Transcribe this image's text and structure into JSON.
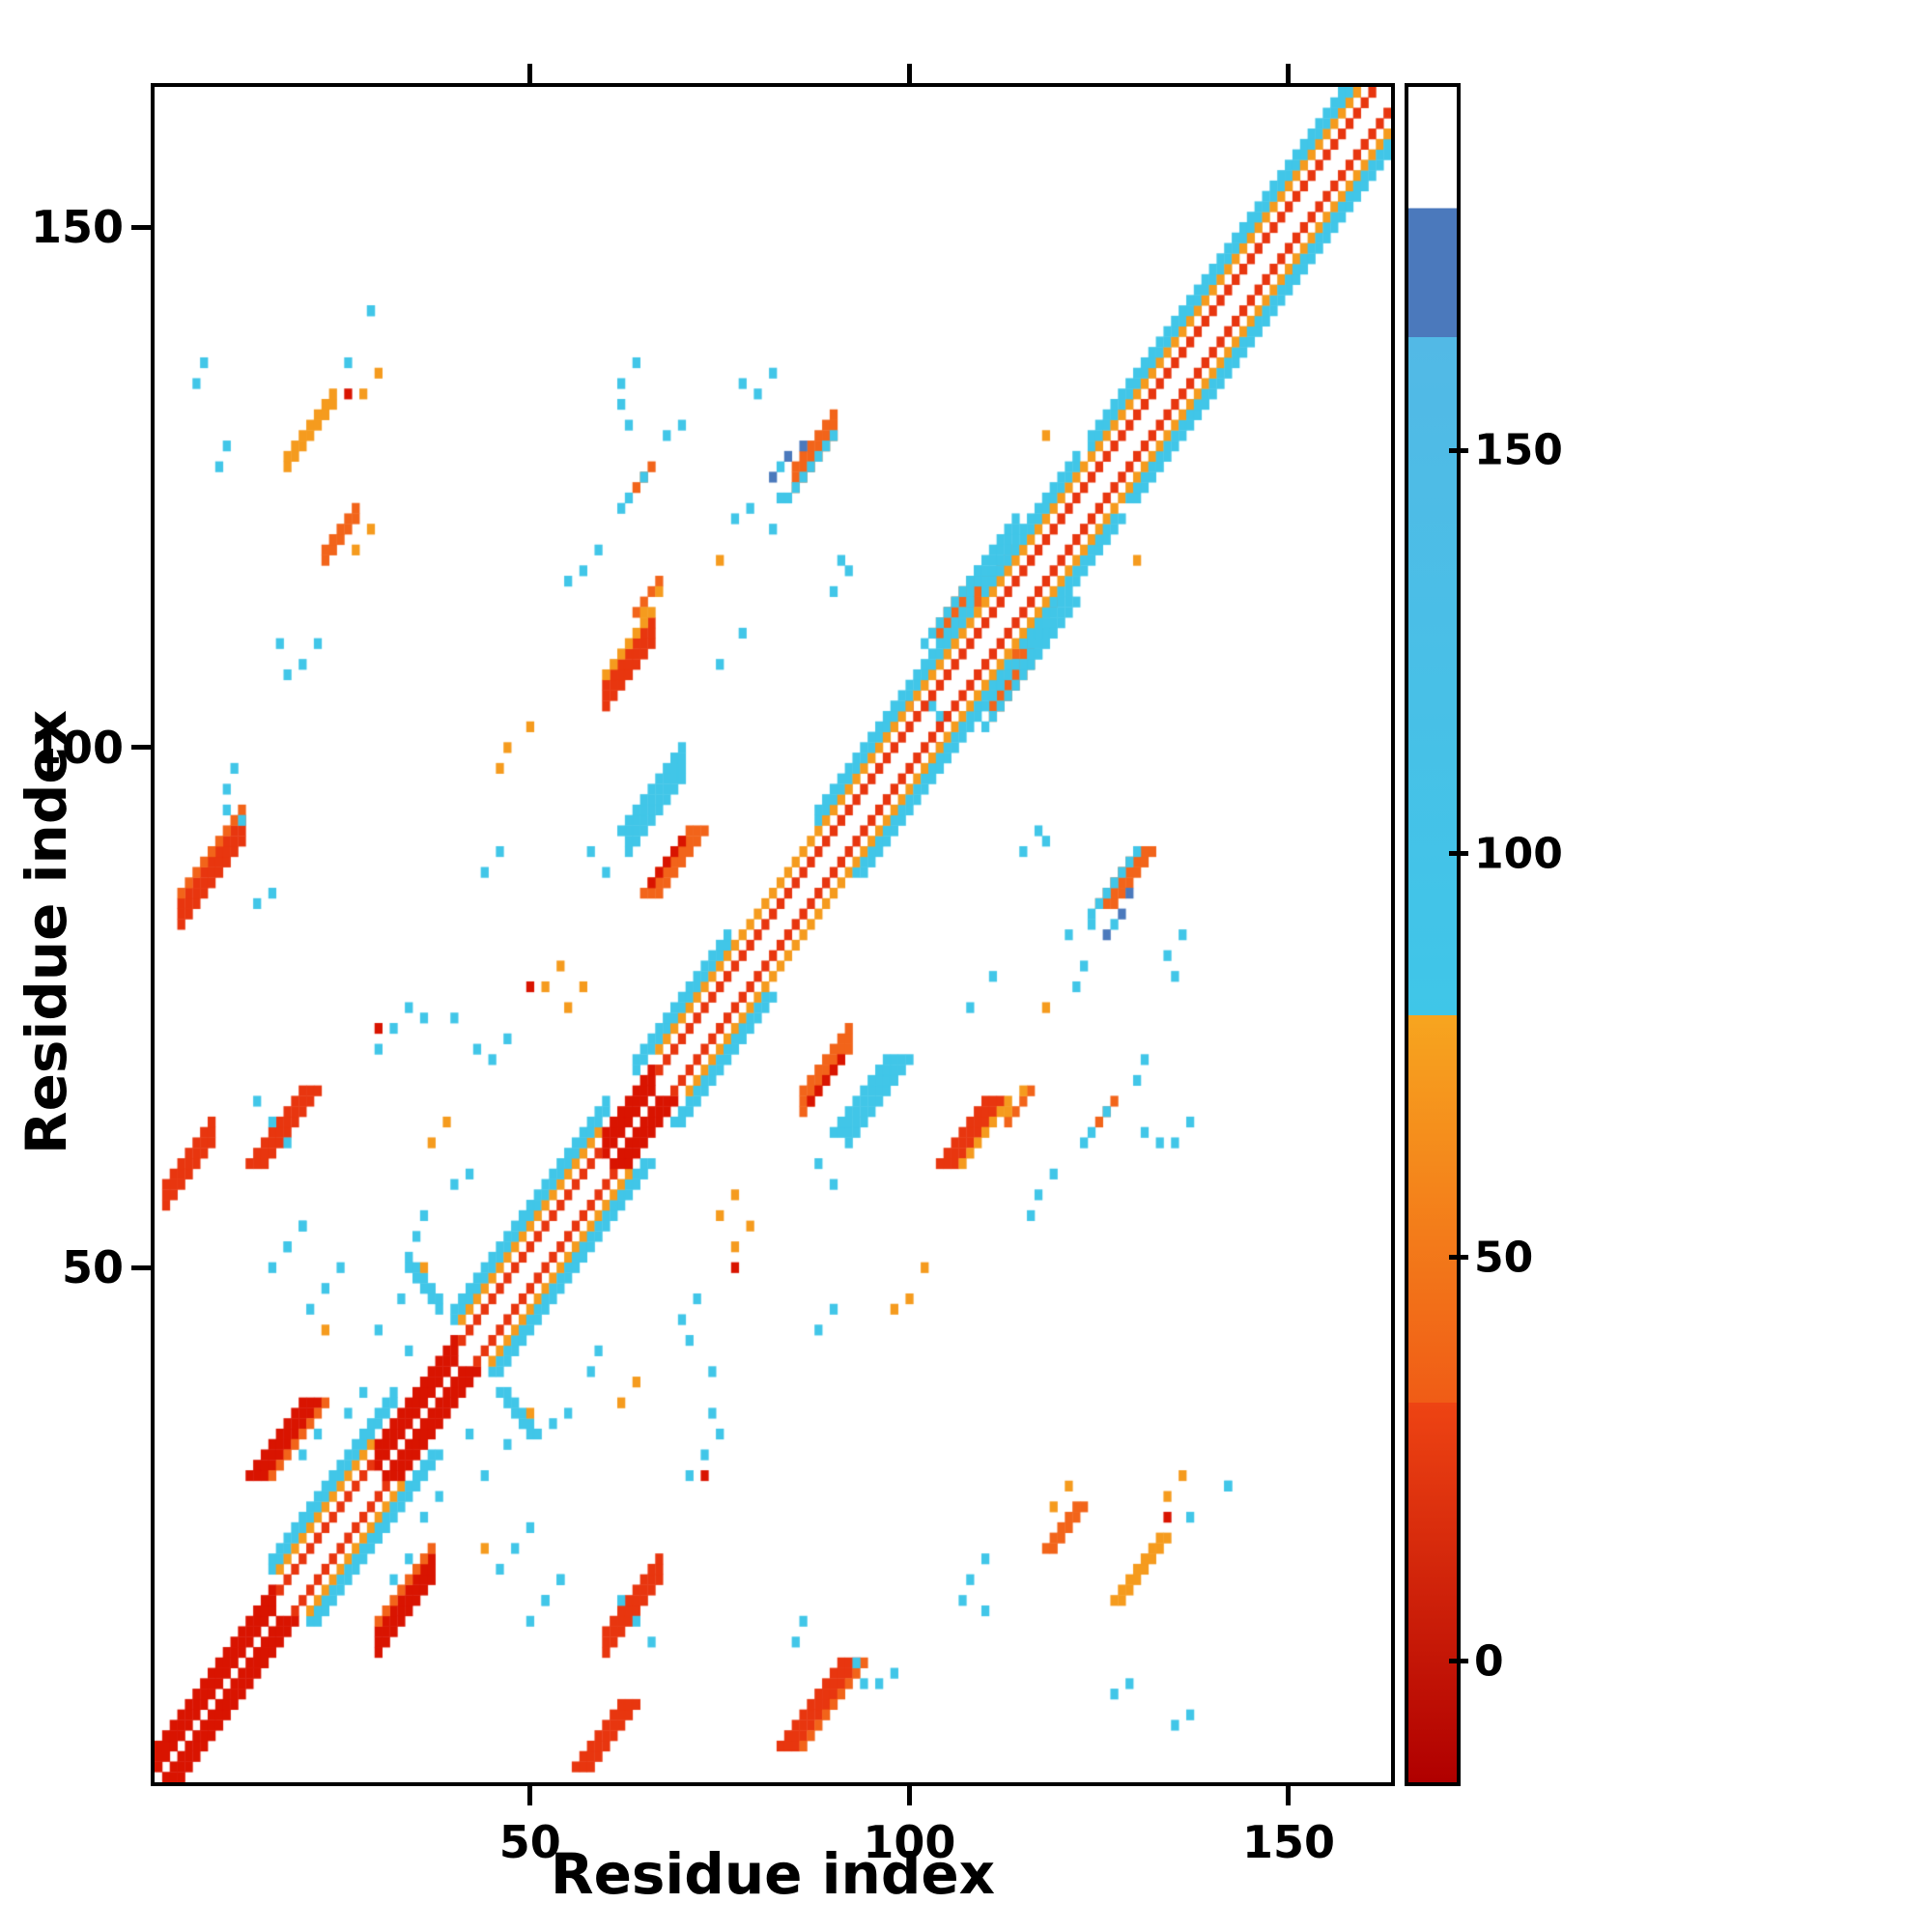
{
  "chart_data": {
    "type": "heatmap",
    "xlabel": "Residue index",
    "ylabel": "Residue index",
    "n_residues": 163,
    "x_ticks": [
      50,
      100,
      150
    ],
    "y_ticks": [
      50,
      100,
      150
    ],
    "grid": false,
    "colorbar": {
      "ticks": [
        0,
        50,
        100,
        150
      ],
      "value_range": [
        -15,
        195
      ],
      "segments": [
        {
          "from": -15,
          "to": 32,
          "color_bottom": "#b00000",
          "color_top": "#ee4413"
        },
        {
          "from": 32,
          "to": 80,
          "color_bottom": "#f05c16",
          "color_top": "#f7a51f"
        },
        {
          "from": 80,
          "to": 164,
          "color_bottom": "#3fc6e8",
          "color_top": "#52b9e6"
        },
        {
          "from": 164,
          "to": 180,
          "color_bottom": "#4b79bc",
          "color_top": "#4b79bc"
        },
        {
          "from": 180,
          "to": 195,
          "color_bottom": "#ffffff",
          "color_top": "#ffffff"
        }
      ]
    },
    "colormap": [
      {
        "max": 8,
        "color": "#c40d00"
      },
      {
        "max": 15,
        "color": "#d91400"
      },
      {
        "max": 32,
        "color": "#e8360f"
      },
      {
        "max": 55,
        "color": "#f2641a"
      },
      {
        "max": 80,
        "color": "#f59b1e"
      },
      {
        "max": 164,
        "color": "#41c6e8"
      },
      {
        "max": 180,
        "color": "#4b79bc"
      },
      {
        "max": 9999,
        "color": "#ffffff"
      }
    ],
    "diagonal": {
      "band": [
        {
          "offset": 2,
          "v": 28
        },
        {
          "offset": 4,
          "v": 58
        }
      ],
      "helix_flank": [
        {
          "offset": 5,
          "v": 100
        },
        {
          "offset": 6,
          "v": 100
        }
      ],
      "helix_ranges": [
        [
          16,
          32
        ],
        [
          40,
          60
        ],
        [
          64,
          76
        ],
        [
          88,
          108
        ],
        [
          110,
          122
        ],
        [
          124,
          163
        ]
      ],
      "solid_ranges": [
        [
          1,
          16
        ],
        [
          30,
          40
        ],
        [
          60,
          66
        ]
      ],
      "solid_offsets": [
        1,
        2,
        3
      ],
      "solid_v": 8
    },
    "clusters": [
      {
        "r": 83,
        "c": 4,
        "len": 9,
        "dir": 1,
        "w": 3,
        "v": 15
      },
      {
        "r": 86,
        "c": 4,
        "len": 9,
        "dir": 1,
        "w": 1,
        "v": 50
      },
      {
        "r": 56,
        "c": 2,
        "len": 7,
        "dir": 1,
        "w": 3,
        "v": 18
      },
      {
        "r": 13,
        "c": 30,
        "len": 8,
        "dir": 1,
        "w": 3,
        "v": 12
      },
      {
        "r": 16,
        "c": 30,
        "len": 8,
        "dir": 1,
        "w": 1,
        "v": 50
      },
      {
        "r": 13,
        "c": 60,
        "len": 8,
        "dir": 1,
        "w": 3,
        "v": 15
      },
      {
        "r": 103,
        "c": 111,
        "len": 6,
        "dir": 1,
        "w": 3,
        "v": 50
      },
      {
        "r": 102,
        "c": 110,
        "len": 8,
        "dir": 1,
        "w": 1,
        "v": 100
      },
      {
        "r": 104,
        "c": 60,
        "len": 7,
        "dir": 1,
        "w": 3,
        "v": 18
      },
      {
        "r": 107,
        "c": 60,
        "len": 7,
        "dir": 1,
        "w": 1,
        "v": 55
      },
      {
        "r": 65,
        "c": 86,
        "len": 7,
        "dir": 1,
        "w": 3,
        "v": 45
      },
      {
        "r": 66,
        "c": 87,
        "len": 5,
        "dir": 1,
        "w": 1,
        "v": 12
      },
      {
        "r": 90,
        "c": 63,
        "len": 8,
        "dir": 1,
        "w": 4,
        "v": 100
      },
      {
        "r": 127,
        "c": 18,
        "len": 7,
        "dir": 1,
        "w": 2,
        "v": 55
      },
      {
        "r": 125,
        "c": 85,
        "len": 6,
        "dir": 1,
        "w": 3,
        "v": 50
      },
      {
        "r": 124,
        "c": 84,
        "len": 7,
        "dir": 1,
        "w": 1,
        "v": 100
      },
      {
        "r": 115,
        "c": 108,
        "len": 7,
        "dir": 1,
        "w": 2,
        "v": 100
      },
      {
        "r": 114,
        "c": 109,
        "len": 6,
        "dir": 1,
        "w": 1,
        "v": 50
      },
      {
        "r": 113,
        "c": 64,
        "len": 4,
        "dir": 1,
        "w": 1,
        "v": 45
      },
      {
        "r": 125,
        "c": 64,
        "len": 3,
        "dir": 1,
        "w": 1,
        "v": 50
      },
      {
        "r": 46,
        "c": 38,
        "len": 5,
        "dir": -1,
        "w": 2,
        "v": 100
      },
      {
        "r": 118,
        "c": 23,
        "len": 5,
        "dir": 1,
        "w": 2,
        "v": 50
      }
    ],
    "dots": [
      [
        135,
        6,
        100
      ],
      [
        137,
        7,
        100
      ],
      [
        129,
        10,
        100
      ],
      [
        127,
        9,
        100
      ],
      [
        94,
        10,
        100
      ],
      [
        96,
        10,
        100
      ],
      [
        98,
        11,
        100
      ],
      [
        93,
        12,
        100
      ],
      [
        107,
        18,
        100
      ],
      [
        110,
        17,
        100
      ],
      [
        110,
        22,
        100
      ],
      [
        108,
        20,
        100
      ],
      [
        85,
        14,
        100
      ],
      [
        86,
        16,
        100
      ],
      [
        66,
        14,
        100
      ],
      [
        64,
        16,
        100
      ],
      [
        62,
        18,
        100
      ],
      [
        52,
        18,
        100
      ],
      [
        54,
        20,
        100
      ],
      [
        46,
        21,
        100
      ],
      [
        48,
        23,
        100
      ],
      [
        50,
        25,
        100
      ],
      [
        44,
        30,
        100
      ],
      [
        47,
        33,
        100
      ],
      [
        55,
        36,
        100
      ],
      [
        53,
        35,
        100
      ],
      [
        42,
        34,
        100
      ],
      [
        38,
        28,
        100
      ],
      [
        36,
        26,
        100
      ],
      [
        58,
        40,
        100
      ],
      [
        59,
        42,
        100
      ],
      [
        133,
        62,
        100
      ],
      [
        135,
        62,
        100
      ],
      [
        131,
        63,
        100
      ],
      [
        137,
        64,
        100
      ],
      [
        142,
        29,
        100
      ],
      [
        26,
        137,
        100
      ],
      [
        136,
        82,
        100
      ],
      [
        134,
        80,
        100
      ],
      [
        135,
        78,
        100
      ],
      [
        122,
        77,
        100
      ],
      [
        123,
        79,
        100
      ],
      [
        121,
        82,
        100
      ],
      [
        124,
        83,
        100
      ],
      [
        111,
        78,
        100
      ],
      [
        108,
        75,
        100
      ],
      [
        103,
        104,
        100
      ],
      [
        90,
        115,
        100
      ],
      [
        92,
        117,
        100
      ],
      [
        91,
        118,
        100
      ],
      [
        57,
        117,
        100
      ],
      [
        55,
        116,
        100
      ],
      [
        59,
        119,
        100
      ],
      [
        63,
        124,
        100
      ],
      [
        65,
        126,
        100
      ],
      [
        62,
        123,
        100
      ],
      [
        68,
        130,
        100
      ],
      [
        70,
        131,
        100
      ],
      [
        83,
        127,
        100
      ],
      [
        18,
        52,
        100
      ],
      [
        20,
        54,
        100
      ],
      [
        16,
        50,
        100
      ],
      [
        45,
        70,
        100
      ],
      [
        43,
        71,
        100
      ],
      [
        47,
        72,
        100
      ],
      [
        40,
        74,
        100
      ],
      [
        75,
        34,
        100
      ],
      [
        73,
        32,
        100
      ],
      [
        60,
        88,
        100
      ],
      [
        58,
        90,
        100
      ],
      [
        62,
        92,
        100
      ],
      [
        88,
        44,
        100
      ],
      [
        90,
        46,
        100
      ],
      [
        29,
        142,
        100
      ],
      [
        74,
        36,
        100
      ],
      [
        71,
        30,
        100
      ],
      [
        34,
        22,
        100
      ],
      [
        32,
        20,
        100
      ],
      [
        30,
        24,
        100
      ],
      [
        84,
        128,
        170
      ],
      [
        82,
        126,
        170
      ],
      [
        86,
        129,
        170
      ],
      [
        98,
        46,
        55
      ],
      [
        100,
        47,
        55
      ],
      [
        102,
        50,
        55
      ],
      [
        52,
        77,
        55
      ],
      [
        54,
        79,
        55
      ],
      [
        134,
        28,
        55
      ],
      [
        136,
        30,
        55
      ],
      [
        118,
        75,
        55
      ],
      [
        75,
        55,
        55
      ],
      [
        77,
        57,
        55
      ],
      [
        50,
        36,
        55
      ],
      [
        119,
        27,
        55
      ],
      [
        121,
        29,
        55
      ],
      [
        37,
        62,
        55
      ],
      [
        39,
        64,
        55
      ],
      [
        65,
        113,
        55
      ],
      [
        67,
        115,
        55
      ],
      [
        130,
        118,
        55
      ],
      [
        23,
        44,
        55
      ],
      [
        50,
        77,
        10
      ],
      [
        134,
        26,
        10
      ],
      [
        104,
        100,
        10
      ],
      [
        73,
        30,
        10
      ]
    ]
  }
}
